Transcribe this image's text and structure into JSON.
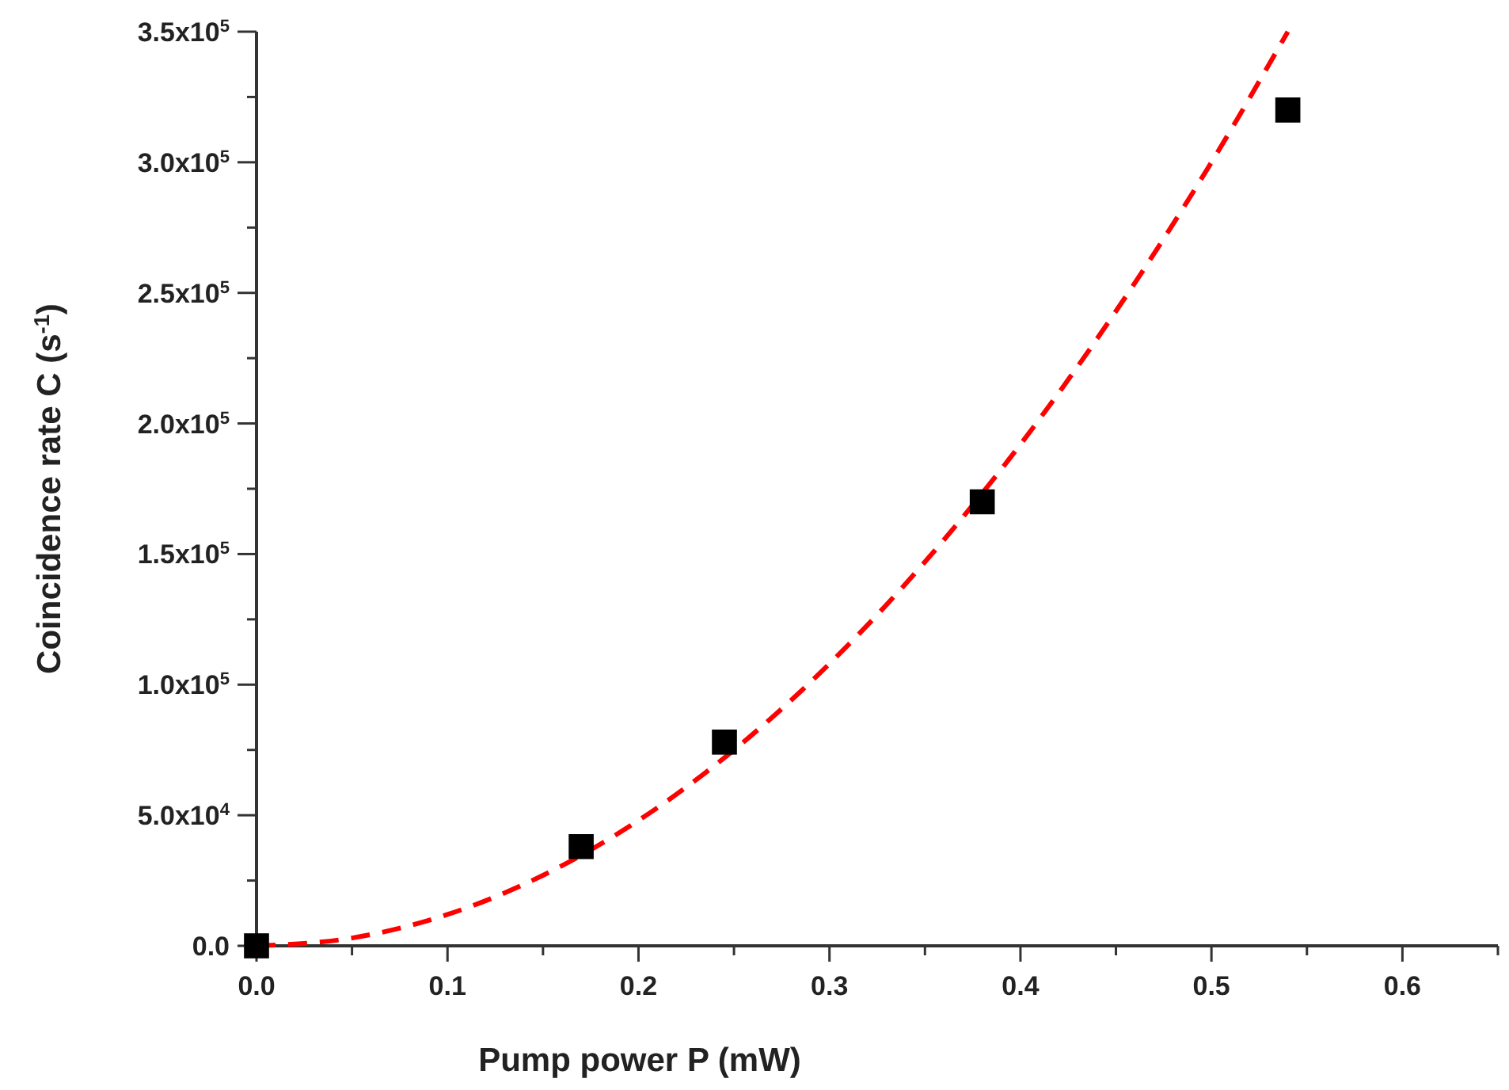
{
  "chart_data": {
    "type": "scatter",
    "xlabel": "Pump power P (mW)",
    "ylabel": "Coincidence rate C (s$^{-1}$)",
    "xlim": [
      0,
      0.65
    ],
    "ylim": [
      0,
      350000
    ],
    "xticks": [
      {
        "value": 0,
        "label": "0.0"
      },
      {
        "value": 0.05,
        "label": null
      },
      0.1,
      {
        "value": 0.15,
        "label": null
      },
      0.2,
      {
        "value": 0.25,
        "label": null
      },
      0.3,
      {
        "value": 0.35,
        "label": null
      },
      0.4,
      {
        "value": 0.45,
        "label": null
      },
      0.5,
      {
        "value": 0.55,
        "label": null
      },
      0.6,
      {
        "value": 0.65,
        "label": null
      }
    ],
    "yticks": [
      {
        "value": 0,
        "label": "0.0"
      },
      {
        "value": 25000,
        "label": null
      },
      {
        "value": 50000,
        "label": "5.0x10$^{4}$"
      },
      {
        "value": 75000,
        "label": null
      },
      {
        "value": 100000,
        "label": "1.0x10$^{5}$"
      },
      {
        "value": 125000,
        "label": null
      },
      {
        "value": 150000,
        "label": "1.5x10$^{5}$"
      },
      {
        "value": 175000,
        "label": null
      },
      {
        "value": 200000,
        "label": "2.0x10$^{5}$"
      },
      {
        "value": 225000,
        "label": null
      },
      {
        "value": 250000,
        "label": "2.5x10$^{5}$"
      },
      {
        "value": 275000,
        "label": null
      },
      {
        "value": 300000,
        "label": "3.0x10$^{5}$"
      },
      {
        "value": 325000,
        "label": null
      },
      {
        "value": 350000,
        "label": "3.5x10$^{5}$"
      }
    ],
    "series": [
      {
        "type": "line",
        "color": "#ff0000",
        "line_style": "dashed",
        "marker": "none",
        "x": [
          0,
          0.05,
          0.1,
          0.15,
          0.2,
          0.25,
          0.3,
          0.35,
          0.4,
          0.45,
          0.5,
          0.54
        ],
        "values": [
          0,
          3000,
          12000,
          27000,
          48000,
          75000,
          108000,
          147000,
          192000,
          243000,
          300000,
          350000
        ]
      },
      {
        "color": "#000000",
        "marker": "square",
        "x": [
          0,
          0.17,
          0.245,
          0.38,
          0.54
        ],
        "values": [
          0,
          38000,
          78000,
          170000,
          320000
        ]
      }
    ]
  }
}
